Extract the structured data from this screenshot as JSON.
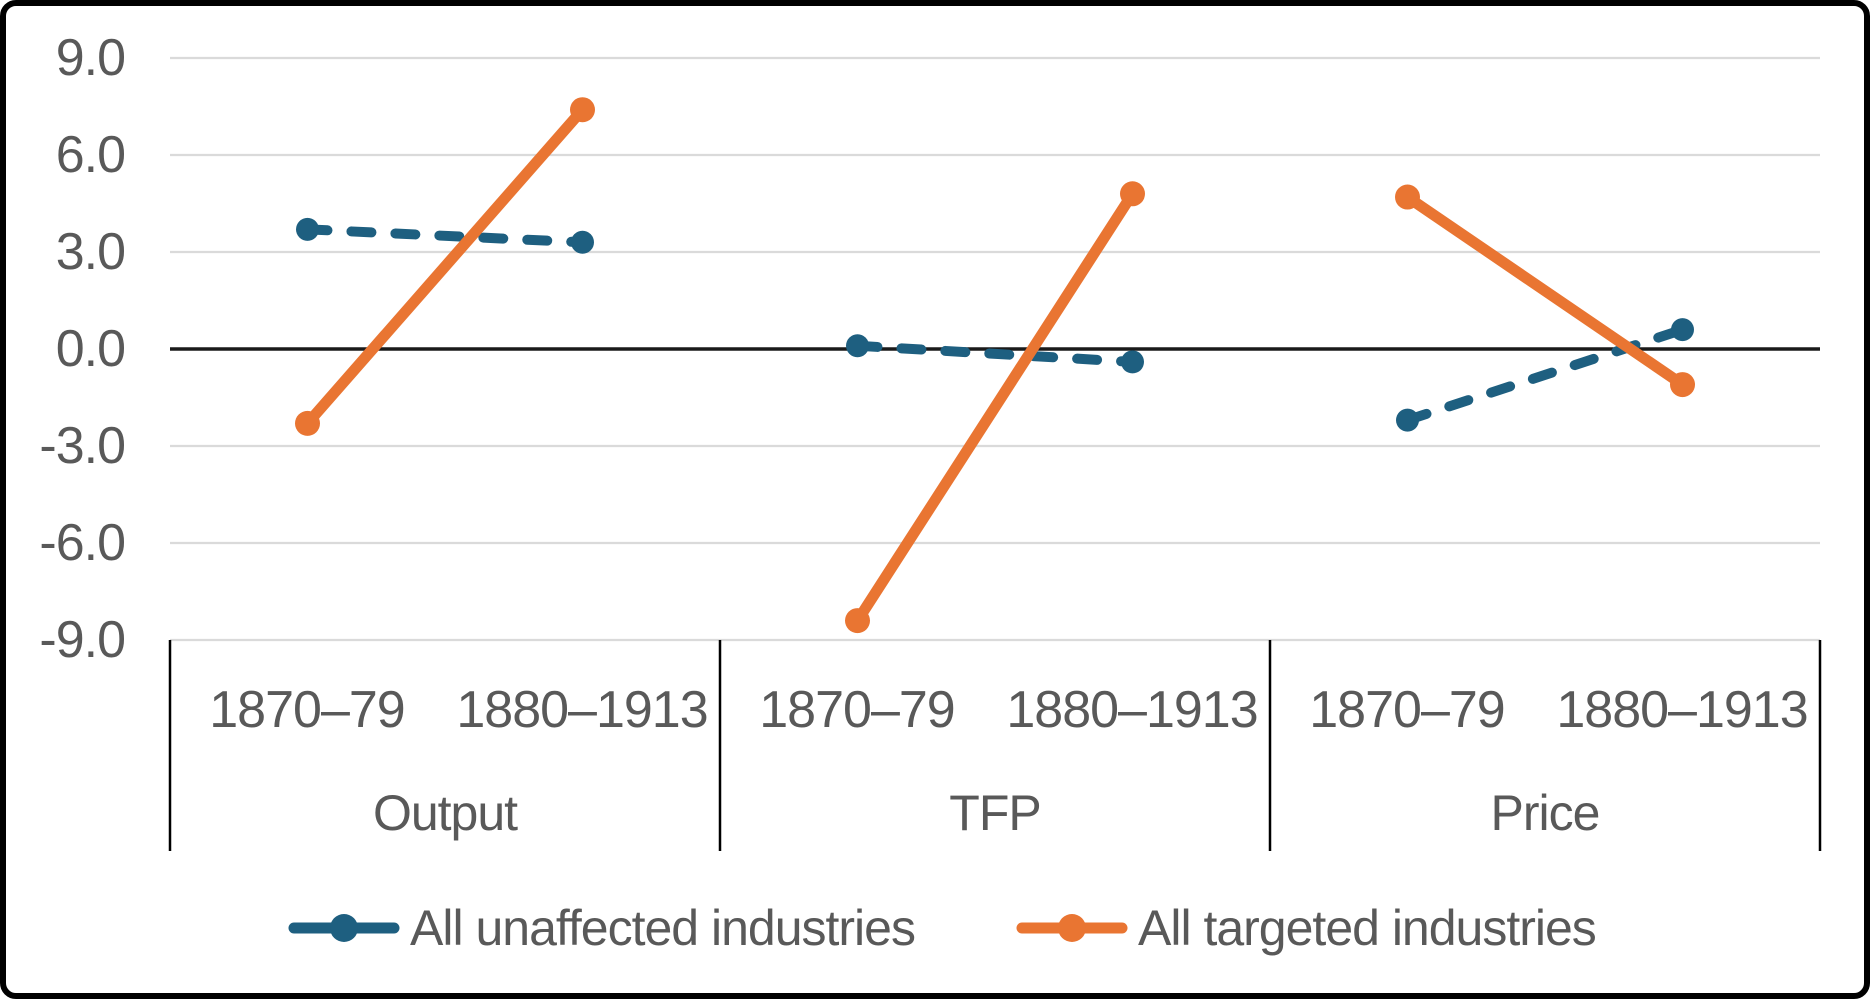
{
  "chart_data": {
    "type": "line",
    "title": "",
    "groups": [
      "Output",
      "TFP",
      "Price"
    ],
    "x_categories": [
      "1870–79",
      "1880–1913"
    ],
    "yticks": [
      "9.0",
      "6.0",
      "3.0",
      "0.0",
      "-3.0",
      "-6.0",
      "-9.0"
    ],
    "ytick_values": [
      9,
      6,
      3,
      0,
      -3,
      -6,
      -9
    ],
    "ylim": [
      -9,
      9
    ],
    "grid": true,
    "legend_position": "bottom",
    "series": [
      {
        "name": "All unaffected industries",
        "style": "dashed",
        "color": "#1E5F80",
        "values": {
          "Output": [
            3.7,
            3.3
          ],
          "TFP": [
            0.1,
            -0.4
          ],
          "Price": [
            -2.2,
            0.6
          ]
        }
      },
      {
        "name": "All targeted industries",
        "style": "solid",
        "color": "#E97532",
        "values": {
          "Output": [
            -2.3,
            7.4
          ],
          "TFP": [
            -8.4,
            4.8
          ],
          "Price": [
            4.7,
            -1.1
          ]
        }
      }
    ]
  },
  "colors": {
    "text": "#595959",
    "gridline": "#DADADA",
    "zero_line": "#1A1A1A",
    "separator": "#000000",
    "background": "#FFFFFF",
    "frame_border": "#000000"
  }
}
